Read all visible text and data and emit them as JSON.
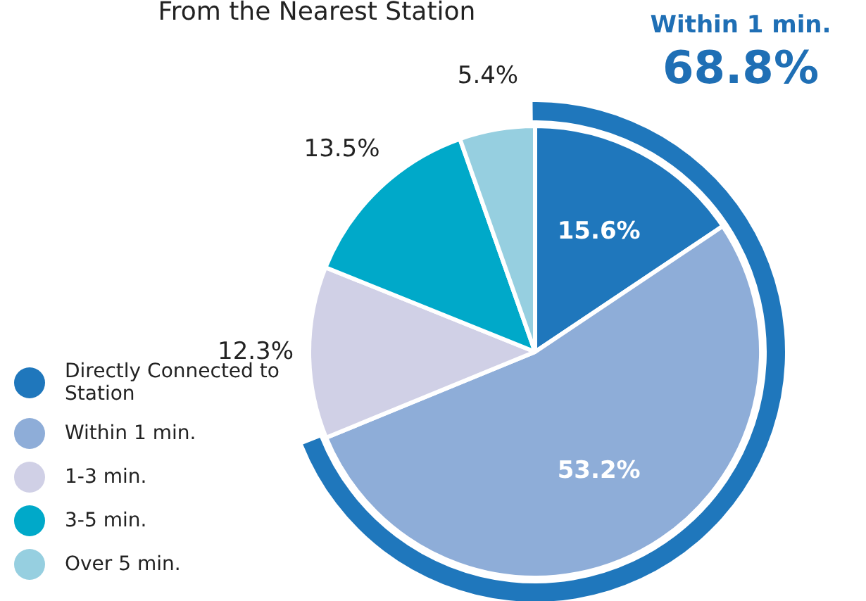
{
  "chart_data": {
    "type": "pie",
    "title": "From the Nearest Station",
    "categories": [
      "Directly Connected to Station",
      "Within 1 min.",
      "1-3 min.",
      "3-5 min.",
      "Over 5 min."
    ],
    "values": [
      15.6,
      53.2,
      12.3,
      13.5,
      5.4
    ],
    "colors": [
      "#1f77bc",
      "#8eadd8",
      "#d0d0e6",
      "#00a9c9",
      "#96cfe0"
    ],
    "value_labels": [
      "15.6%",
      "53.2%",
      "12.3%",
      "13.5%",
      "5.4%"
    ],
    "annotations": [
      "Within 1 min.",
      "68.8%"
    ],
    "legend": "bottom left"
  }
}
